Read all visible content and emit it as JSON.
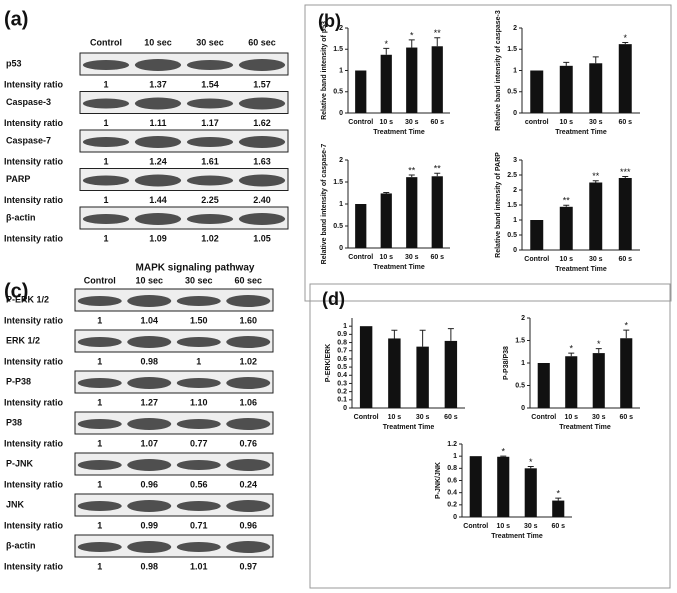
{
  "panels": {
    "a": "(a)",
    "b": "(b)",
    "c": "(c)",
    "d": "(d)"
  },
  "blots_a": {
    "headers": [
      "Control",
      "10 sec",
      "30 sec",
      "60 sec"
    ],
    "ratio_label": "Intensity ratio",
    "rows": [
      {
        "name": "p53",
        "ratios": [
          "1",
          "1.37",
          "1.54",
          "1.57"
        ]
      },
      {
        "name": "Caspase-3",
        "ratios": [
          "1",
          "1.11",
          "1.17",
          "1.62"
        ]
      },
      {
        "name": "Caspase-7",
        "ratios": [
          "1",
          "1.24",
          "1.61",
          "1.63"
        ]
      },
      {
        "name": "PARP",
        "ratios": [
          "1",
          "1.44",
          "2.25",
          "2.40"
        ]
      },
      {
        "name": "β-actin",
        "ratios": [
          "1",
          "1.09",
          "1.02",
          "1.05"
        ]
      }
    ]
  },
  "blots_c": {
    "title": "MAPK signaling pathway",
    "headers": [
      "Control",
      "10 sec",
      "30 sec",
      "60 sec"
    ],
    "ratio_label": "Intensity ratio",
    "rows": [
      {
        "name": "P-ERK 1/2",
        "ratios": [
          "1",
          "1.04",
          "1.50",
          "1.60"
        ]
      },
      {
        "name": "ERK 1/2",
        "ratios": [
          "1",
          "0.98",
          "1",
          "1.02"
        ]
      },
      {
        "name": "P-P38",
        "ratios": [
          "1",
          "1.27",
          "1.10",
          "1.06"
        ]
      },
      {
        "name": "P38",
        "ratios": [
          "1",
          "1.07",
          "0.77",
          "0.76"
        ]
      },
      {
        "name": "P-JNK",
        "ratios": [
          "1",
          "0.96",
          "0.56",
          "0.24"
        ]
      },
      {
        "name": "JNK",
        "ratios": [
          "1",
          "0.99",
          "0.71",
          "0.96"
        ]
      },
      {
        "name": "β-actin",
        "ratios": [
          "1",
          "0.98",
          "1.01",
          "0.97"
        ]
      }
    ]
  },
  "chart_data": [
    {
      "type": "bar",
      "y_label": "Relative band intensity of p53",
      "x_label": "Treatment Time",
      "categories": [
        "Control",
        "10 s",
        "30 s",
        "60 s"
      ],
      "values": [
        1,
        1.37,
        1.54,
        1.57
      ],
      "errors": [
        null,
        0.15,
        0.18,
        0.2
      ],
      "annotations": [
        null,
        "*",
        "*",
        "**"
      ],
      "color": "#111111",
      "ylim": [
        0,
        2
      ],
      "yticks": [
        0,
        0.5,
        1,
        1.5,
        2
      ]
    },
    {
      "type": "bar",
      "y_label": "Relative band intensity of caspase-3",
      "x_label": "Treatment Time",
      "categories": [
        "control",
        "10 s",
        "30 s",
        "60 s"
      ],
      "values": [
        1,
        1.11,
        1.17,
        1.62
      ],
      "errors": [
        null,
        0.08,
        0.15,
        0.04
      ],
      "annotations": [
        null,
        null,
        null,
        "*"
      ],
      "color": "#111111",
      "ylim": [
        0,
        2
      ],
      "yticks": [
        0,
        0.5,
        1,
        1.5,
        2
      ]
    },
    {
      "type": "bar",
      "y_label": "Relative band intensity of caspase-7",
      "x_label": "Treatment Time",
      "categories": [
        "Control",
        "10 s",
        "30 s",
        "60 s"
      ],
      "values": [
        1,
        1.24,
        1.61,
        1.63
      ],
      "errors": [
        null,
        0.02,
        0.05,
        0.07
      ],
      "annotations": [
        null,
        null,
        "**",
        "**"
      ],
      "color": "#111111",
      "ylim": [
        0,
        2
      ],
      "yticks": [
        0,
        0.5,
        1,
        1.5,
        2
      ]
    },
    {
      "type": "bar",
      "y_label": "Relative band intensity of PARP",
      "x_label": "Treatment Time",
      "categories": [
        "Control",
        "10 s",
        "30 s",
        "60 s"
      ],
      "values": [
        1,
        1.44,
        2.25,
        2.4
      ],
      "errors": [
        null,
        0.05,
        0.06,
        0.05
      ],
      "annotations": [
        null,
        "**",
        "**",
        "***"
      ],
      "color": "#111111",
      "ylim": [
        0,
        3
      ],
      "yticks": [
        0,
        0.5,
        1,
        1.5,
        2,
        2.5,
        3
      ]
    },
    {
      "type": "bar",
      "y_label": "P-ERK/ERK",
      "x_label": "Treatment Time",
      "categories": [
        "Control",
        "10 s",
        "30 s",
        "60 s"
      ],
      "values": [
        1,
        0.85,
        0.75,
        0.82
      ],
      "errors": [
        null,
        0.1,
        0.2,
        0.15
      ],
      "annotations": [
        null,
        null,
        null,
        null
      ],
      "color": "#111111",
      "ylim": [
        0,
        1.1
      ],
      "yticks": [
        0,
        0.1,
        0.2,
        0.3,
        0.4,
        0.5,
        0.6,
        0.7,
        0.8,
        0.9,
        1
      ]
    },
    {
      "type": "bar",
      "y_label": "P-P38/P38",
      "x_label": "Treatment Time",
      "categories": [
        "Control",
        "10 s",
        "30 s",
        "60 s"
      ],
      "values": [
        1,
        1.15,
        1.22,
        1.55
      ],
      "errors": [
        null,
        0.07,
        0.1,
        0.18
      ],
      "annotations": [
        null,
        "*",
        "*",
        "*"
      ],
      "color": "#111111",
      "ylim": [
        0,
        2
      ],
      "yticks": [
        0,
        0.5,
        1,
        1.5,
        2
      ]
    },
    {
      "type": "bar",
      "y_label": "P-JNK/JNK",
      "x_label": "Treatment Time",
      "categories": [
        "Control",
        "10 s",
        "30 s",
        "60 s"
      ],
      "values": [
        1,
        0.99,
        0.8,
        0.27
      ],
      "errors": [
        null,
        0.01,
        0.03,
        0.04
      ],
      "annotations": [
        null,
        "*",
        "*",
        "*"
      ],
      "color": "#111111",
      "ylim": [
        0,
        1.2
      ],
      "yticks": [
        0,
        0.2,
        0.4,
        0.6,
        0.8,
        1,
        1.2
      ]
    }
  ]
}
